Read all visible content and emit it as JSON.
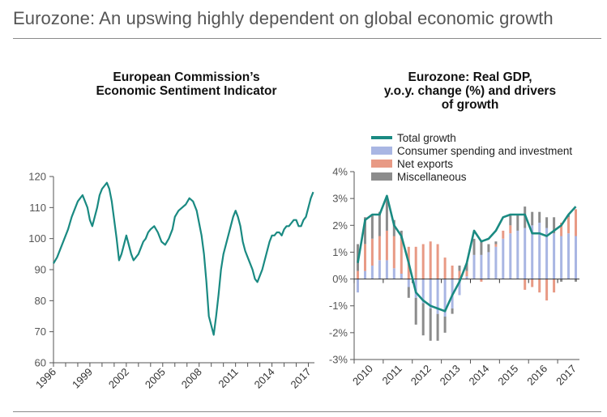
{
  "page": {
    "title": "Eurozone: An upswing highly dependent on global economic growth"
  },
  "colors": {
    "teal": "#1a8a82",
    "blue": "#a9b6e3",
    "salmon": "#e89a85",
    "gray": "#8c8c8c",
    "axis": "#555555"
  },
  "chart_data": [
    {
      "type": "line",
      "title": "European Commission’s Economic Sentiment Indicator",
      "title_lines": [
        "European Commission’s",
        "Economic Sentiment Indicator"
      ],
      "xlabel": "",
      "ylabel": "",
      "xlim": [
        1996,
        2017.5
      ],
      "ylim": [
        60,
        120
      ],
      "yticks": [
        60,
        70,
        80,
        90,
        100,
        110,
        120
      ],
      "xticks": [
        "1996",
        "1999",
        "2002",
        "2005",
        "2008",
        "2011",
        "2014",
        "2017"
      ],
      "series": [
        {
          "name": "Economic Sentiment Indicator",
          "x": [
            1996.0,
            1996.3,
            1996.6,
            1996.9,
            1997.2,
            1997.5,
            1997.8,
            1998.0,
            1998.2,
            1998.4,
            1998.6,
            1998.8,
            1999.0,
            1999.2,
            1999.4,
            1999.6,
            1999.8,
            2000.0,
            2000.2,
            2000.4,
            2000.6,
            2000.8,
            2001.0,
            2001.2,
            2001.4,
            2001.6,
            2001.8,
            2002.0,
            2002.2,
            2002.4,
            2002.6,
            2002.8,
            2003.0,
            2003.2,
            2003.4,
            2003.6,
            2003.8,
            2004.0,
            2004.3,
            2004.6,
            2004.9,
            2005.2,
            2005.5,
            2005.8,
            2006.0,
            2006.3,
            2006.6,
            2006.9,
            2007.2,
            2007.5,
            2007.8,
            2008.0,
            2008.2,
            2008.4,
            2008.6,
            2008.8,
            2009.0,
            2009.2,
            2009.4,
            2009.6,
            2009.8,
            2010.0,
            2010.2,
            2010.4,
            2010.6,
            2010.8,
            2011.0,
            2011.2,
            2011.4,
            2011.6,
            2011.8,
            2012.0,
            2012.2,
            2012.4,
            2012.6,
            2012.8,
            2013.0,
            2013.2,
            2013.4,
            2013.6,
            2013.8,
            2014.0,
            2014.2,
            2014.4,
            2014.6,
            2014.8,
            2015.0,
            2015.2,
            2015.4,
            2015.6,
            2015.8,
            2016.0,
            2016.2,
            2016.4,
            2016.6,
            2016.8,
            2017.0,
            2017.2,
            2017.4
          ],
          "values": [
            92,
            94,
            97,
            100,
            103,
            107,
            110,
            112,
            113,
            114,
            112,
            110,
            106,
            104,
            107,
            110,
            114,
            116,
            117,
            118,
            116,
            112,
            106,
            100,
            93,
            95,
            98,
            101,
            98,
            95,
            93,
            94,
            95,
            97,
            99,
            100,
            102,
            103,
            104,
            102,
            99,
            98,
            100,
            103,
            107,
            109,
            110,
            111,
            113,
            112,
            109,
            105,
            101,
            95,
            86,
            75,
            72,
            69,
            75,
            82,
            90,
            95,
            98,
            101,
            104,
            107,
            109,
            107,
            104,
            99,
            96,
            94,
            92,
            90,
            87,
            86,
            88,
            90,
            93,
            96,
            99,
            101,
            101,
            102,
            102,
            101,
            103,
            104,
            104,
            105,
            106,
            106,
            104,
            104,
            106,
            107,
            110,
            113,
            115
          ]
        }
      ]
    },
    {
      "type": "bar",
      "title": "Eurozone: Real GDP, y.o.y. change (%) and drivers of growth",
      "title_lines": [
        "Eurozone: Real GDP,",
        "y.o.y. change (%) and drivers",
        "of growth"
      ],
      "xlabel": "",
      "ylabel": "",
      "ylim": [
        -3,
        4
      ],
      "yticks": [
        "4%",
        "3%",
        "2%",
        "1%",
        "0%",
        "-1%",
        "-2%",
        "-3%"
      ],
      "ytick_values": [
        4,
        3,
        2,
        1,
        0,
        -1,
        -2,
        -3
      ],
      "xticks": [
        "2010",
        "2011",
        "2012",
        "2013",
        "2014",
        "2015",
        "2016",
        "2017"
      ],
      "categories": [
        "2010Q1",
        "2010Q2",
        "2010Q3",
        "2010Q4",
        "2011Q1",
        "2011Q2",
        "2011Q3",
        "2011Q4",
        "2012Q1",
        "2012Q2",
        "2012Q3",
        "2012Q4",
        "2013Q1",
        "2013Q2",
        "2013Q3",
        "2013Q4",
        "2014Q1",
        "2014Q2",
        "2014Q3",
        "2014Q4",
        "2015Q1",
        "2015Q2",
        "2015Q3",
        "2015Q4",
        "2016Q1",
        "2016Q2",
        "2016Q3",
        "2016Q4",
        "2017Q1",
        "2017Q2",
        "2017Q3"
      ],
      "legend": [
        "Total growth",
        "Consumer spending and investment",
        "Net exports",
        "Miscellaneous"
      ],
      "series": [
        {
          "name": "Consumer spending and investment",
          "values": [
            -0.5,
            0.3,
            0.5,
            0.7,
            0.7,
            0.4,
            0.2,
            -0.3,
            -0.7,
            -0.9,
            -1.1,
            -1.3,
            -1.4,
            -1.1,
            -0.6,
            0.1,
            0.9,
            0.9,
            1.0,
            1.2,
            1.5,
            1.7,
            1.8,
            1.9,
            2.0,
            2.1,
            1.9,
            1.7,
            1.6,
            1.7,
            1.6
          ]
        },
        {
          "name": "Net exports",
          "values": [
            0.3,
            1.0,
            1.0,
            0.9,
            1.1,
            1.2,
            1.3,
            1.2,
            1.2,
            1.3,
            1.4,
            1.3,
            0.8,
            0.5,
            0.3,
            0.2,
            0.0,
            -0.1,
            0.0,
            0.1,
            0.3,
            0.3,
            0.0,
            -0.4,
            -0.3,
            -0.5,
            -0.8,
            -0.5,
            0.5,
            0.6,
            1.0
          ]
        },
        {
          "name": "Miscellaneous",
          "values": [
            1.0,
            1.0,
            0.9,
            0.9,
            1.2,
            0.6,
            0.3,
            -0.4,
            -1.0,
            -1.2,
            -1.2,
            -1.0,
            -0.6,
            -0.2,
            0.2,
            0.3,
            0.6,
            0.5,
            0.3,
            0.1,
            0.0,
            0.4,
            0.6,
            0.8,
            0.5,
            0.4,
            0.4,
            0.6,
            -0.1,
            0.1,
            -0.1
          ]
        },
        {
          "name": "Total growth",
          "values": [
            0.6,
            2.2,
            2.4,
            2.4,
            3.1,
            2.0,
            1.6,
            0.6,
            -0.5,
            -0.8,
            -1.0,
            -1.1,
            -1.2,
            -0.6,
            -0.1,
            0.6,
            1.8,
            1.4,
            1.5,
            1.8,
            2.3,
            2.4,
            2.4,
            2.4,
            1.7,
            1.7,
            1.6,
            1.8,
            2.0,
            2.4,
            2.7
          ]
        }
      ]
    }
  ]
}
